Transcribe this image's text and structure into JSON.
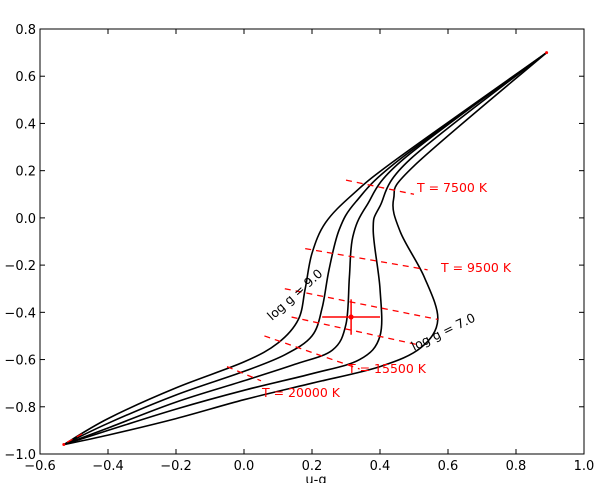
{
  "chart_data": {
    "type": "line",
    "xlabel": "u-g",
    "ylabel": "",
    "xlim": [
      -0.6,
      1.0
    ],
    "ylim": [
      -1.0,
      0.8
    ],
    "xticks": [
      -0.6,
      -0.4,
      -0.2,
      0.0,
      0.2,
      0.4,
      0.6,
      0.8,
      1.0
    ],
    "xtick_labels": [
      "−0.6",
      "−0.4",
      "−0.2",
      "0.0",
      "0.2",
      "0.4",
      "0.6",
      "0.8",
      "1.0"
    ],
    "yticks": [
      -1.0,
      -0.8,
      -0.6,
      -0.4,
      -0.2,
      0.0,
      0.2,
      0.4,
      0.6,
      0.8
    ],
    "ytick_labels": [
      "−1.0",
      "−0.8",
      "−0.6",
      "−0.4",
      "−0.2",
      "0.0",
      "0.2",
      "0.4",
      "0.6",
      "0.8"
    ],
    "grid": false,
    "colors": {
      "model": "#000000",
      "isotherm": "#ff0000",
      "point": "#ff0000"
    },
    "series": [
      {
        "values": [
          [
            -0.53,
            -0.96
          ],
          [
            -0.4,
            -0.85
          ],
          [
            -0.2,
            -0.72
          ],
          [
            0.0,
            -0.61
          ],
          [
            0.1,
            -0.53
          ],
          [
            0.16,
            -0.43
          ],
          [
            0.18,
            -0.3
          ],
          [
            0.2,
            -0.15
          ],
          [
            0.24,
            -0.02
          ],
          [
            0.32,
            0.1
          ],
          [
            0.45,
            0.25
          ],
          [
            0.89,
            0.7
          ]
        ]
      },
      {
        "values": [
          [
            -0.53,
            -0.96
          ],
          [
            -0.4,
            -0.87
          ],
          [
            -0.2,
            -0.75
          ],
          [
            0.0,
            -0.65
          ],
          [
            0.12,
            -0.58
          ],
          [
            0.2,
            -0.5
          ],
          [
            0.23,
            -0.38
          ],
          [
            0.25,
            -0.22
          ],
          [
            0.28,
            -0.05
          ],
          [
            0.33,
            0.07
          ],
          [
            0.46,
            0.25
          ],
          [
            0.89,
            0.7
          ]
        ]
      },
      {
        "values": [
          [
            -0.53,
            -0.96
          ],
          [
            -0.4,
            -0.89
          ],
          [
            -0.2,
            -0.78
          ],
          [
            0.0,
            -0.69
          ],
          [
            0.15,
            -0.62
          ],
          [
            0.26,
            -0.56
          ],
          [
            0.3,
            -0.45
          ],
          [
            0.31,
            -0.25
          ],
          [
            0.32,
            -0.08
          ],
          [
            0.36,
            0.05
          ],
          [
            0.47,
            0.25
          ],
          [
            0.89,
            0.7
          ]
        ]
      },
      {
        "values": [
          [
            -0.53,
            -0.96
          ],
          [
            -0.4,
            -0.9
          ],
          [
            -0.2,
            -0.81
          ],
          [
            0.0,
            -0.73
          ],
          [
            0.2,
            -0.66
          ],
          [
            0.34,
            -0.6
          ],
          [
            0.4,
            -0.5
          ],
          [
            0.4,
            -0.3
          ],
          [
            0.38,
            -0.05
          ],
          [
            0.4,
            0.05
          ],
          [
            0.49,
            0.25
          ],
          [
            0.89,
            0.7
          ]
        ]
      },
      {
        "values": [
          [
            -0.53,
            -0.96
          ],
          [
            -0.4,
            -0.92
          ],
          [
            -0.2,
            -0.85
          ],
          [
            0.0,
            -0.77
          ],
          [
            0.2,
            -0.7
          ],
          [
            0.4,
            -0.63
          ],
          [
            0.52,
            -0.55
          ],
          [
            0.57,
            -0.43
          ],
          [
            0.53,
            -0.25
          ],
          [
            0.46,
            -0.06
          ],
          [
            0.44,
            0.08
          ],
          [
            0.5,
            0.22
          ],
          [
            0.89,
            0.7
          ]
        ]
      }
    ],
    "isotherms": [
      {
        "label": "T = 7500 K",
        "points": [
          [
            0.3,
            0.16
          ],
          [
            0.5,
            0.1
          ]
        ]
      },
      {
        "label": "T = 9500 K",
        "points": [
          [
            0.18,
            -0.13
          ],
          [
            0.54,
            -0.22
          ]
        ]
      },
      {
        "label": "T = 15500 K",
        "points": [
          [
            0.12,
            -0.3
          ],
          [
            0.57,
            -0.43
          ]
        ]
      },
      {
        "label": "T = 20000 K",
        "points": [
          [
            -0.05,
            -0.63
          ],
          [
            0.05,
            -0.69
          ]
        ]
      }
    ],
    "extra_dashes": [
      {
        "points": [
          [
            0.14,
            -0.42
          ],
          [
            0.52,
            -0.54
          ]
        ]
      },
      {
        "points": [
          [
            0.06,
            -0.5
          ],
          [
            0.34,
            -0.64
          ]
        ]
      },
      {
        "points": [
          [
            -0.52,
            -0.95
          ],
          [
            -0.47,
            -0.91
          ]
        ]
      }
    ],
    "measurement": {
      "x": 0.315,
      "y": -0.42,
      "xerr": 0.085,
      "yerr": 0.075
    },
    "annotations": [
      {
        "text": "log g = 9.0"
      },
      {
        "text": "log g = 7.0"
      }
    ]
  }
}
